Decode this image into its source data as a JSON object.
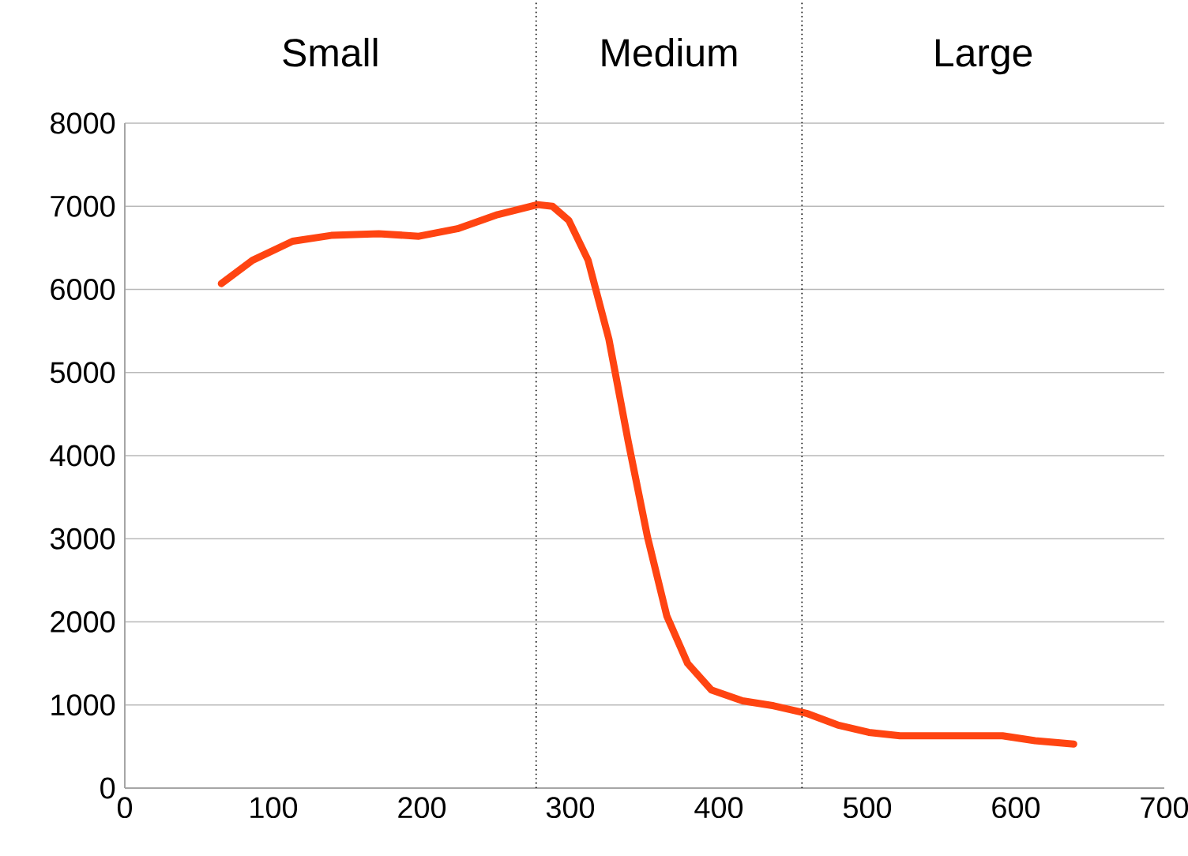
{
  "chart_data": {
    "type": "line",
    "x": [
      65,
      86,
      113,
      139,
      171,
      198,
      224,
      251,
      278,
      288,
      299,
      312,
      326,
      339,
      352,
      365,
      379,
      395,
      416,
      437,
      459,
      480,
      501,
      522,
      554,
      591,
      613,
      639
    ],
    "series": [
      {
        "color": "#ff4411",
        "values": [
          6070,
          6350,
          6580,
          6650,
          6670,
          6640,
          6730,
          6900,
          7020,
          7000,
          6830,
          6350,
          5400,
          4170,
          3020,
          2070,
          1500,
          1180,
          1050,
          990,
          900,
          760,
          670,
          630,
          630,
          630,
          570,
          530
        ]
      }
    ],
    "xlim": [
      0,
      700
    ],
    "xticks": [
      0,
      100,
      200,
      300,
      400,
      500,
      600,
      700
    ],
    "ylim": [
      0,
      8000
    ],
    "yticks": [
      0,
      1000,
      2000,
      3000,
      4000,
      5000,
      6000,
      7000,
      8000
    ],
    "grid": "y",
    "marker": "none",
    "line_style": "solid",
    "ref_lines": [
      {
        "axis": "x",
        "value": 277,
        "color": "#000000",
        "line_style": "dotted"
      },
      {
        "axis": "x",
        "value": 456,
        "color": "#000000",
        "line_style": "dotted"
      }
    ],
    "annotations": [
      "Small",
      "Medium",
      "Large"
    ]
  }
}
